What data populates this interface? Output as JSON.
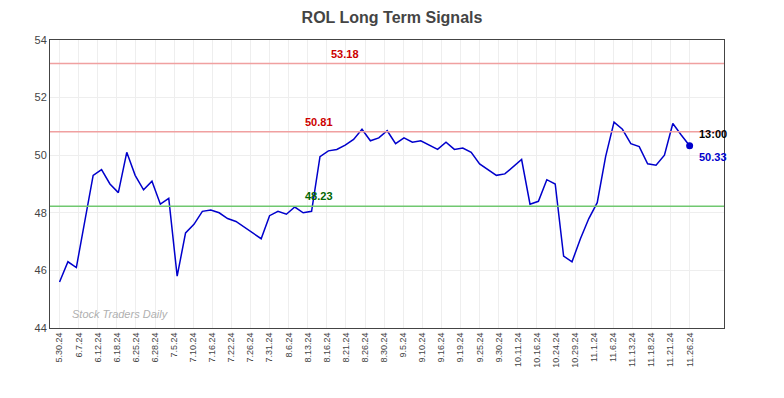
{
  "chart_data": {
    "type": "line",
    "title": "ROL Long Term Signals",
    "x": [
      0,
      0.44,
      0.88,
      1.32,
      1.76,
      2.2,
      2.64,
      3.08,
      3.52,
      3.96,
      4.4,
      4.84,
      5.28,
      5.72,
      6.16,
      6.6,
      7.04,
      7.48,
      7.92,
      8.36,
      8.8,
      9.24,
      9.68,
      10.12,
      10.56,
      11,
      11.44,
      11.88,
      12.32,
      12.76,
      13.2,
      13.64,
      14.08,
      14.52,
      14.96,
      15.4,
      15.84,
      16.28,
      16.72,
      17.16,
      17.6,
      18.04,
      18.48,
      18.92,
      19.36,
      19.8,
      20.24,
      20.68,
      21.12,
      21.56,
      22,
      22.44,
      22.88,
      23.32,
      23.76,
      24.2,
      24.64,
      25.08,
      25.52,
      25.96,
      26.4,
      26.84,
      27.28,
      27.72,
      28.16,
      28.6,
      29.04,
      29.48,
      29.92,
      30.36,
      30.8,
      31.24,
      31.68,
      32.12,
      32.56,
      33
    ],
    "values": [
      45.6,
      46.3,
      46.1,
      47.7,
      49.3,
      49.5,
      49.0,
      48.7,
      50.1,
      49.3,
      48.8,
      49.1,
      48.3,
      48.5,
      45.8,
      47.3,
      47.6,
      48.05,
      48.1,
      48.0,
      47.8,
      47.7,
      47.5,
      47.3,
      47.1,
      47.9,
      48.05,
      47.95,
      48.2,
      48.0,
      48.05,
      49.95,
      50.15,
      50.2,
      50.35,
      50.55,
      50.9,
      50.5,
      50.6,
      50.85,
      50.4,
      50.6,
      50.45,
      50.5,
      50.35,
      50.2,
      50.45,
      50.2,
      50.25,
      50.1,
      49.7,
      49.5,
      49.3,
      49.35,
      49.6,
      49.85,
      48.3,
      48.4,
      49.15,
      49.0,
      46.5,
      46.3,
      47.1,
      47.8,
      48.35,
      49.95,
      51.15,
      50.9,
      50.4,
      50.3,
      49.7,
      49.65,
      50.0,
      51.1,
      50.7,
      50.33
    ],
    "color": "#0000cc",
    "xlim": [
      -0.5,
      34.8
    ],
    "xticks": [
      {
        "value": 0,
        "label": "5.30.24"
      },
      {
        "value": 1,
        "label": "6.7.24"
      },
      {
        "value": 2,
        "label": "6.12.24"
      },
      {
        "value": 3,
        "label": "6.18.24"
      },
      {
        "value": 4,
        "label": "6.25.24"
      },
      {
        "value": 5,
        "label": "6.28.24"
      },
      {
        "value": 6,
        "label": "7.5.24"
      },
      {
        "value": 7,
        "label": "7.10.24"
      },
      {
        "value": 8,
        "label": "7.16.24"
      },
      {
        "value": 9,
        "label": "7.22.24"
      },
      {
        "value": 10,
        "label": "7.26.24"
      },
      {
        "value": 11,
        "label": "7.31.24"
      },
      {
        "value": 12,
        "label": "8.6.24"
      },
      {
        "value": 13,
        "label": "8.13.24"
      },
      {
        "value": 14,
        "label": "8.16.24"
      },
      {
        "value": 15,
        "label": "8.21.24"
      },
      {
        "value": 16,
        "label": "8.26.24"
      },
      {
        "value": 17,
        "label": "8.30.24"
      },
      {
        "value": 18,
        "label": "9.5.24"
      },
      {
        "value": 19,
        "label": "9.10.24"
      },
      {
        "value": 20,
        "label": "9.16.24"
      },
      {
        "value": 21,
        "label": "9.19.24"
      },
      {
        "value": 22,
        "label": "9.25.24"
      },
      {
        "value": 23,
        "label": "9.30.24"
      },
      {
        "value": 24,
        "label": "10.11.24"
      },
      {
        "value": 25,
        "label": "10.16.24"
      },
      {
        "value": 26,
        "label": "10.24.24"
      },
      {
        "value": 27,
        "label": "10.29.24"
      },
      {
        "value": 28,
        "label": "11.1.24"
      },
      {
        "value": 29,
        "label": "11.6.24"
      },
      {
        "value": 30,
        "label": "11.13.24"
      },
      {
        "value": 31,
        "label": "11.18.24"
      },
      {
        "value": 32,
        "label": "11.21.24"
      },
      {
        "value": 33,
        "label": "11.26.24"
      }
    ],
    "ylim": [
      44,
      54
    ],
    "yticks": [
      44,
      46,
      48,
      50,
      52,
      54
    ],
    "grid": true,
    "reference_lines": [
      {
        "value": 53.18,
        "label": "53.18",
        "color": "#f0a0a0",
        "label_color": "#cc0000"
      },
      {
        "value": 50.81,
        "label": "50.81",
        "color": "#f0a0a0",
        "label_color": "#cc0000"
      },
      {
        "value": 48.23,
        "label": "48.23",
        "color": "#70c870",
        "label_color": "#006600"
      }
    ],
    "last_point": {
      "x": 33,
      "value": 50.33,
      "label": "13:00",
      "value_label": "50.33"
    },
    "watermark": {
      "text": "Stock Traders Daily",
      "color": "#b0b0b0"
    }
  }
}
